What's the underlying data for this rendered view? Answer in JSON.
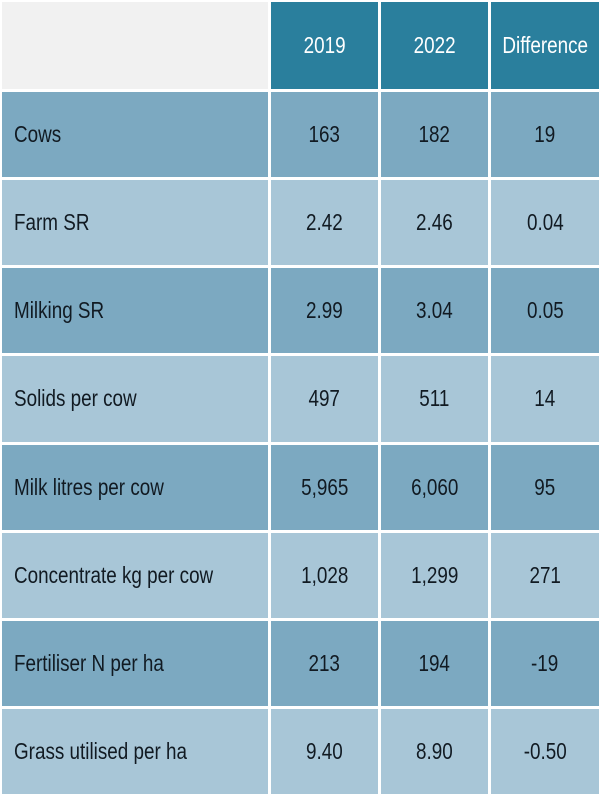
{
  "header": [
    "2019",
    "2022",
    "Difference"
  ],
  "rows": [
    {
      "label": "Cows",
      "v2019": "163",
      "v2022": "182",
      "diff": "19"
    },
    {
      "label": "Farm SR",
      "v2019": "2.42",
      "v2022": "2.46",
      "diff": "0.04"
    },
    {
      "label": "Milking SR",
      "v2019": "2.99",
      "v2022": "3.04",
      "diff": "0.05"
    },
    {
      "label": "Solids per cow",
      "v2019": "497",
      "v2022": "511",
      "diff": "14"
    },
    {
      "label": "Milk litres per cow",
      "v2019": "5,965",
      "v2022": "6,060",
      "diff": "95"
    },
    {
      "label": "Concentrate kg per cow",
      "v2019": "1,028",
      "v2022": "1,299",
      "diff": "271"
    },
    {
      "label": "Fertiliser N per ha",
      "v2019": "213",
      "v2022": "194",
      "diff": "-19"
    },
    {
      "label": "Grass utilised per ha",
      "v2019": "9.40",
      "v2022": "8.90",
      "diff": "-0.50"
    }
  ]
}
